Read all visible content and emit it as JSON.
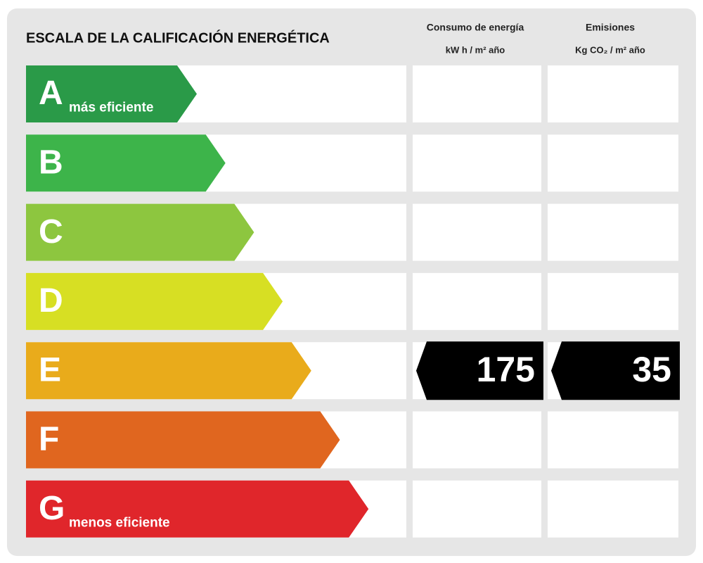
{
  "header": {
    "title": "ESCALA DE LA CALIFICACIÓN ENERGÉTICA",
    "columns": [
      {
        "title": "Consumo de energía",
        "unit": "kW h / m² año"
      },
      {
        "title": "Emisiones",
        "unit": "Kg CO₂ / m² año"
      }
    ]
  },
  "rows": [
    {
      "letter": "A",
      "note": "más eficiente",
      "color": "#2a9a48"
    },
    {
      "letter": "B",
      "color": "#3db44a"
    },
    {
      "letter": "C",
      "color": "#8dc63f"
    },
    {
      "letter": "D",
      "color": "#d7df23"
    },
    {
      "letter": "E",
      "color": "#e9ab1b"
    },
    {
      "letter": "F",
      "color": "#e0661f"
    },
    {
      "letter": "G",
      "note": "menos eficiente",
      "color": "#e0262b"
    }
  ],
  "rating": {
    "letter": "E",
    "consumption": 175,
    "emissions": 35
  }
}
